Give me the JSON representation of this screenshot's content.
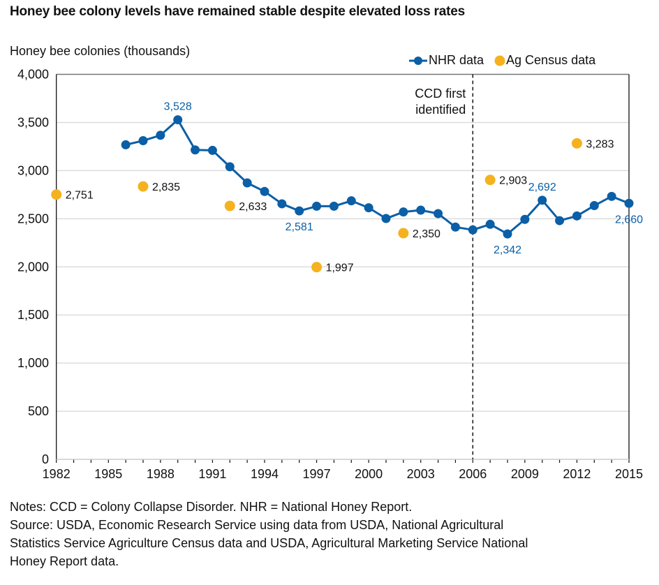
{
  "chart_data": {
    "type": "line",
    "title": "Honey bee colony levels have remained stable despite elevated loss rates",
    "ylabel": "Honey bee colonies (thousands)",
    "xlabel": "",
    "ylim": [
      0,
      4000
    ],
    "xlim": [
      1982,
      2015
    ],
    "yticks": [
      0,
      500,
      1000,
      1500,
      2000,
      2500,
      3000,
      3500,
      4000
    ],
    "ytick_labels": [
      "0",
      "500",
      "1,000",
      "1,500",
      "2,000",
      "2,500",
      "3,000",
      "3,500",
      "4,000"
    ],
    "xticks_labeled": [
      1982,
      1985,
      1988,
      1991,
      1994,
      1997,
      2000,
      2003,
      2006,
      2009,
      2012,
      2015
    ],
    "grid": "horizontal",
    "legend": {
      "placement": "top-right",
      "entries": [
        "NHR data",
        "Ag Census data"
      ]
    },
    "colors": {
      "nhr": "#0a5fa6",
      "census": "#f5b21f",
      "grid": "#dddddd",
      "axis": "#111111"
    },
    "series": [
      {
        "name": "NHR data",
        "type": "line-marker",
        "x": [
          1986,
          1987,
          1988,
          1989,
          1990,
          1991,
          1992,
          1993,
          1994,
          1995,
          1996,
          1997,
          1998,
          1999,
          2000,
          2001,
          2002,
          2003,
          2004,
          2005,
          2006,
          2007,
          2008,
          2009,
          2010,
          2011,
          2012,
          2013,
          2014,
          2015
        ],
        "values": [
          3268,
          3311,
          3367,
          3528,
          3215,
          3210,
          3040,
          2872,
          2783,
          2655,
          2581,
          2630,
          2630,
          2686,
          2614,
          2502,
          2570,
          2589,
          2553,
          2413,
          2384,
          2442,
          2342,
          2493,
          2692,
          2480,
          2529,
          2636,
          2732,
          2660
        ],
        "labels": [
          {
            "x": 1989,
            "value": 3528,
            "text": "3,528",
            "position": "above"
          },
          {
            "x": 1996,
            "value": 2581,
            "text": "2,581",
            "position": "below"
          },
          {
            "x": 2008,
            "value": 2342,
            "text": "2,342",
            "position": "below"
          },
          {
            "x": 2010,
            "value": 2692,
            "text": "2,692",
            "position": "above"
          },
          {
            "x": 2015,
            "value": 2660,
            "text": "2,660",
            "position": "below"
          }
        ]
      },
      {
        "name": "Ag Census data",
        "type": "scatter",
        "x": [
          1982,
          1987,
          1992,
          1997,
          2002,
          2007,
          2012
        ],
        "values": [
          2751,
          2835,
          2633,
          1997,
          2350,
          2903,
          3283
        ],
        "labels": [
          "2,751",
          "2,835",
          "2,633",
          "1,997",
          "2,350",
          "2,903",
          "3,283"
        ]
      }
    ],
    "annotations": [
      {
        "x": 2006,
        "type": "vertical-dashed-line",
        "text_lines": [
          "CCD first",
          "identified"
        ]
      }
    ]
  },
  "notes": [
    "Notes: CCD = Colony Collapse Disorder. NHR = National Honey Report.",
    "Source: USDA, Economic Research Service using data from USDA, National Agricultural",
    "Statistics Service Agriculture Census data and USDA, Agricultural Marketing Service National",
    "Honey Report data."
  ]
}
